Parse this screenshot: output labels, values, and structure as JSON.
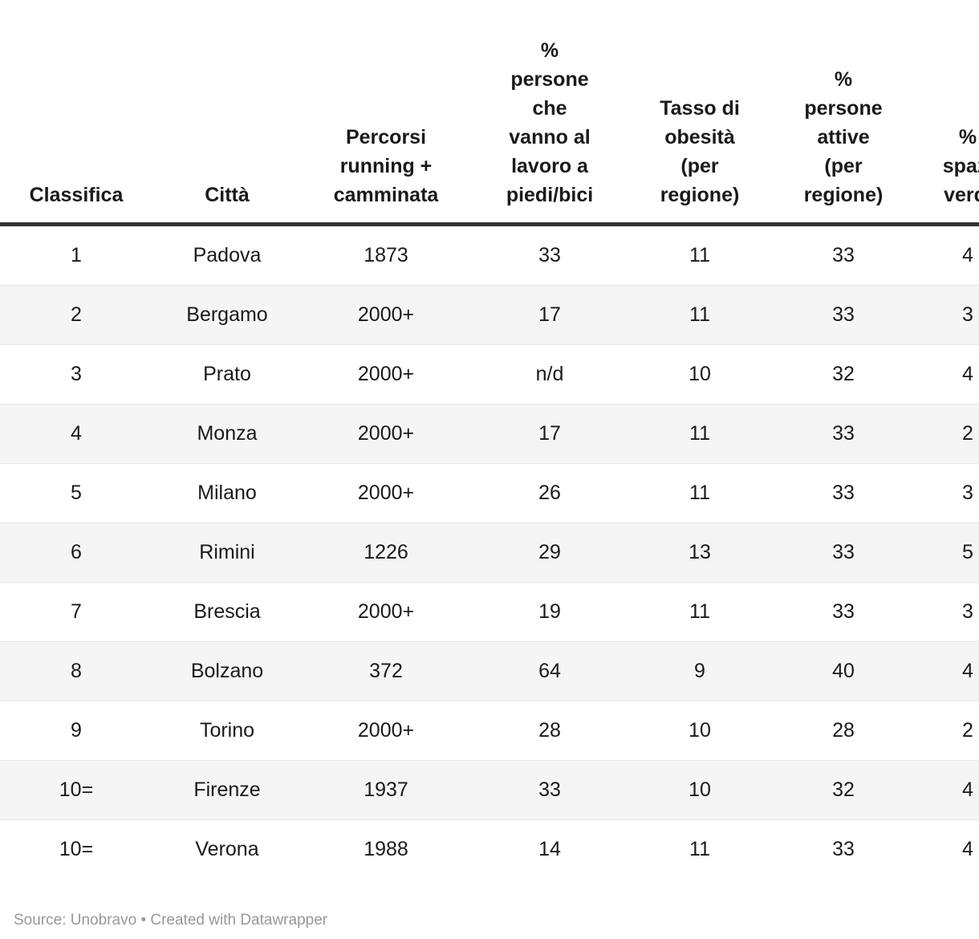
{
  "colors": {
    "background": "#ffffff",
    "text": "#1a1a1a",
    "header_rule": "#333333",
    "row_stripe": "#f5f5f5",
    "row_separator": "#e6e6e6",
    "footer_text": "#989898"
  },
  "chart_data": {
    "type": "table",
    "columns": [
      {
        "key": "classifica",
        "label": "Classifica"
      },
      {
        "key": "citta",
        "label": "Città"
      },
      {
        "key": "percorsi",
        "label": "Percorsi\nrunning +\ncamminata"
      },
      {
        "key": "piedi_bici",
        "label": "%\npersone\nche\nvanno al\nlavoro a\npiedi/bici"
      },
      {
        "key": "obesita",
        "label": "Tasso di\nobesità\n(per\nregione)"
      },
      {
        "key": "attive",
        "label": "%\npersone\nattive\n(per\nregione)"
      },
      {
        "key": "spazi_verdi",
        "label": "%\nspazi\nverdi"
      }
    ],
    "rows": [
      [
        "1",
        "Padova",
        "1873",
        "33",
        "11",
        "33",
        "4"
      ],
      [
        "2",
        "Bergamo",
        "2000+",
        "17",
        "11",
        "33",
        "3"
      ],
      [
        "3",
        "Prato",
        "2000+",
        "n/d",
        "10",
        "32",
        "4"
      ],
      [
        "4",
        "Monza",
        "2000+",
        "17",
        "11",
        "33",
        "2"
      ],
      [
        "5",
        "Milano",
        "2000+",
        "26",
        "11",
        "33",
        "3"
      ],
      [
        "6",
        "Rimini",
        "1226",
        "29",
        "13",
        "33",
        "5"
      ],
      [
        "7",
        "Brescia",
        "2000+",
        "19",
        "11",
        "33",
        "3"
      ],
      [
        "8",
        "Bolzano",
        "372",
        "64",
        "9",
        "40",
        "4"
      ],
      [
        "9",
        "Torino",
        "2000+",
        "28",
        "10",
        "28",
        "2"
      ],
      [
        "10=",
        "Firenze",
        "1937",
        "33",
        "10",
        "32",
        "4"
      ],
      [
        "10=",
        "Verona",
        "1988",
        "14",
        "11",
        "33",
        "4"
      ]
    ],
    "layout_hints": {
      "striped_rows": "even",
      "last_column_clipped_at_right_edge": true
    }
  },
  "footer": {
    "source_label": "Source:",
    "source_name": "Unobravo",
    "separator": "•",
    "credit": "Created with Datawrapper"
  }
}
